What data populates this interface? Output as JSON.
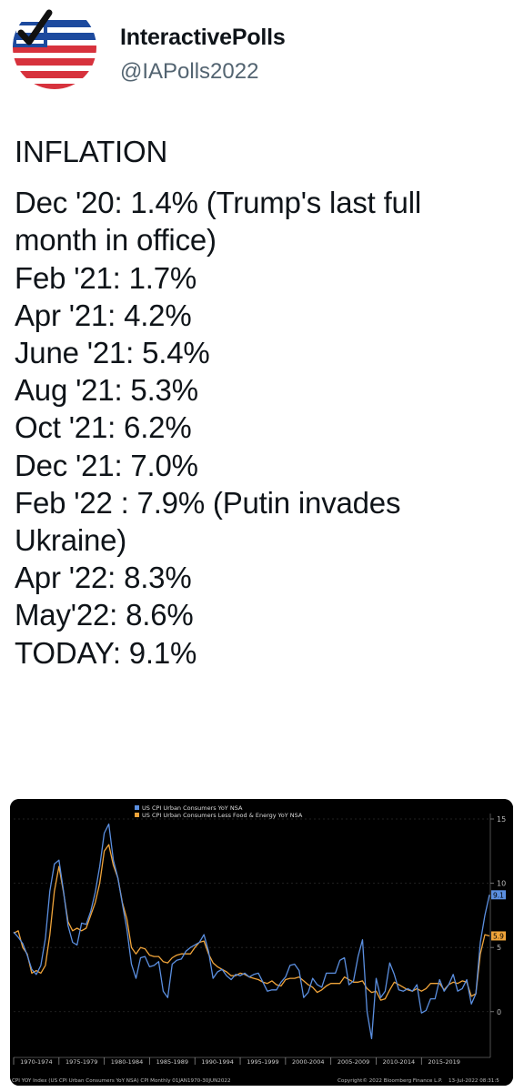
{
  "account": {
    "name": "InteractivePolls",
    "handle": "@IAPolls2022",
    "avatar_icon": "check-flag-icon"
  },
  "tweet": {
    "heading": "INFLATION",
    "lines": [
      "Dec '20: 1.4% (Trump's last full",
      "month in office)",
      "Feb '21: 1.7%",
      "Apr '21: 4.2%",
      "June '21: 5.4%",
      "Aug '21: 5.3%",
      "Oct '21: 6.2%",
      "Dec '21: 7.0%",
      "Feb '22 : 7.9% (Putin invades",
      "Ukraine)",
      "Apr '22: 8.3%",
      "May'22: 8.6%",
      "TODAY: 9.1%"
    ]
  },
  "colors": {
    "background": "#ffffff",
    "text": "#0f1419",
    "muted": "#536471",
    "chart_bg": "#000000",
    "series_headline": "#5b8fe0",
    "series_core": "#f0a43a"
  },
  "chart_data": {
    "type": "line",
    "title": "",
    "xlabel": "",
    "ylabel": "",
    "xlim": [
      1970,
      2022.6
    ],
    "ylim": [
      -2,
      15
    ],
    "y_ticks": [
      0,
      5,
      10,
      15
    ],
    "x_tick_labels": [
      "1970-1974",
      "1975-1979",
      "1980-1984",
      "1985-1989",
      "1990-1994",
      "1995-1999",
      "2000-2004",
      "2005-2009",
      "2010-2014",
      "2015-2019"
    ],
    "legend": {
      "placement": "top-left",
      "entries": [
        "US CPI Urban Consumers YoY NSA",
        "US CPI Urban Consumers Less Food & Energy YoY NSA"
      ]
    },
    "last_value_labels": [
      "9.1",
      "5.9"
    ],
    "footer_left": "CPI YOY Index (US CPI Urban Consumers YoY NSA) CPI  Monthly 01JAN1970-30JUN2022",
    "footer_copyright": "Copyright© 2022 Bloomberg Finance L.P.",
    "footer_date": "13-Jul-2022 08:31:5",
    "series": [
      {
        "name": "US CPI Urban Consumers YoY NSA",
        "x": [
          1970,
          1970.5,
          1971,
          1971.5,
          1972,
          1972.5,
          1973,
          1973.5,
          1974,
          1974.5,
          1975,
          1975.5,
          1976,
          1976.5,
          1977,
          1977.5,
          1978,
          1978.5,
          1979,
          1979.5,
          1980,
          1980.5,
          1981,
          1981.5,
          1982,
          1982.5,
          1983,
          1983.5,
          1984,
          1984.5,
          1985,
          1985.5,
          1986,
          1986.5,
          1987,
          1987.5,
          1988,
          1988.5,
          1989,
          1989.5,
          1990,
          1990.5,
          1991,
          1991.5,
          1992,
          1992.5,
          1993,
          1993.5,
          1994,
          1994.5,
          1995,
          1995.5,
          1996,
          1996.5,
          1997,
          1997.5,
          1998,
          1998.5,
          1999,
          1999.5,
          2000,
          2000.5,
          2001,
          2001.5,
          2002,
          2002.5,
          2003,
          2003.5,
          2004,
          2004.5,
          2005,
          2005.5,
          2006,
          2006.5,
          2007,
          2007.5,
          2008,
          2008.5,
          2009,
          2009.5,
          2010,
          2010.5,
          2011,
          2011.5,
          2012,
          2012.5,
          2013,
          2013.5,
          2014,
          2014.5,
          2015,
          2015.5,
          2016,
          2016.5,
          2017,
          2017.5,
          2018,
          2018.5,
          2019,
          2019.5,
          2020,
          2020.5,
          2021,
          2021.5,
          2022,
          2022.5
        ],
        "values": [
          6.2,
          5.8,
          5.3,
          4.4,
          3.3,
          2.9,
          3.6,
          5.7,
          9.4,
          11.5,
          11.8,
          9.4,
          6.7,
          5.4,
          5.2,
          6.9,
          6.8,
          7.8,
          9.3,
          11.3,
          13.9,
          14.6,
          11.8,
          10.4,
          8.4,
          6.4,
          3.7,
          2.6,
          4.2,
          4.3,
          3.5,
          3.6,
          3.9,
          1.6,
          1.1,
          3.7,
          4.0,
          4.1,
          4.7,
          5.0,
          5.2,
          5.4,
          6.0,
          4.7,
          2.6,
          3.1,
          3.3,
          2.8,
          2.5,
          2.9,
          2.8,
          3.0,
          2.7,
          2.9,
          3.0,
          2.3,
          1.6,
          1.7,
          1.7,
          2.3,
          2.7,
          3.6,
          3.7,
          3.2,
          1.1,
          1.5,
          2.6,
          2.1,
          1.9,
          3.0,
          3.0,
          3.0,
          4.0,
          4.2,
          2.1,
          2.4,
          4.3,
          5.6,
          0.0,
          -2.1,
          2.6,
          1.1,
          1.6,
          3.8,
          2.9,
          1.7,
          1.6,
          1.8,
          1.6,
          2.1,
          -0.1,
          0.1,
          1.0,
          1.0,
          2.5,
          1.6,
          2.1,
          2.9,
          1.6,
          1.8,
          2.5,
          0.6,
          1.4,
          5.4,
          7.5,
          9.1
        ]
      },
      {
        "name": "US CPI Urban Consumers Less Food & Energy YoY NSA",
        "x": [
          1970,
          1970.5,
          1971,
          1971.5,
          1972,
          1972.5,
          1973,
          1973.5,
          1974,
          1974.5,
          1975,
          1975.5,
          1976,
          1976.5,
          1977,
          1977.5,
          1978,
          1978.5,
          1979,
          1979.5,
          1980,
          1980.5,
          1981,
          1981.5,
          1982,
          1982.5,
          1983,
          1983.5,
          1984,
          1984.5,
          1985,
          1985.5,
          1986,
          1986.5,
          1987,
          1987.5,
          1988,
          1988.5,
          1989,
          1989.5,
          1990,
          1990.5,
          1991,
          1991.5,
          1992,
          1992.5,
          1993,
          1993.5,
          1994,
          1994.5,
          1995,
          1995.5,
          1996,
          1996.5,
          1997,
          1997.5,
          1998,
          1998.5,
          1999,
          1999.5,
          2000,
          2000.5,
          2001,
          2001.5,
          2002,
          2002.5,
          2003,
          2003.5,
          2004,
          2004.5,
          2005,
          2005.5,
          2006,
          2006.5,
          2007,
          2007.5,
          2008,
          2008.5,
          2009,
          2009.5,
          2010,
          2010.5,
          2011,
          2011.5,
          2012,
          2012.5,
          2013,
          2013.5,
          2014,
          2014.5,
          2015,
          2015.5,
          2016,
          2016.5,
          2017,
          2017.5,
          2018,
          2018.5,
          2019,
          2019.5,
          2020,
          2020.5,
          2021,
          2021.5,
          2022,
          2022.5
        ],
        "values": [
          6.1,
          6.3,
          5.0,
          4.5,
          3.0,
          3.2,
          3.0,
          3.6,
          6.0,
          9.4,
          11.3,
          9.3,
          7.0,
          6.3,
          6.5,
          6.3,
          6.5,
          7.5,
          8.5,
          10.0,
          12.5,
          13.0,
          11.4,
          10.4,
          8.5,
          7.2,
          5.0,
          4.5,
          5.0,
          4.9,
          4.4,
          4.3,
          4.3,
          3.9,
          3.8,
          4.2,
          4.4,
          4.5,
          4.5,
          4.5,
          5.0,
          5.4,
          5.5,
          4.5,
          3.8,
          3.5,
          3.3,
          3.1,
          2.8,
          2.8,
          3.0,
          2.9,
          2.7,
          2.6,
          2.5,
          2.3,
          2.2,
          2.4,
          2.1,
          2.0,
          2.5,
          2.6,
          2.6,
          2.7,
          2.4,
          2.1,
          1.9,
          1.5,
          1.7,
          2.0,
          2.2,
          2.2,
          2.2,
          2.7,
          2.5,
          2.3,
          2.3,
          2.4,
          1.8,
          1.5,
          1.6,
          0.9,
          1.0,
          1.7,
          2.3,
          2.1,
          1.9,
          1.7,
          1.6,
          1.8,
          1.6,
          1.8,
          2.2,
          2.2,
          2.2,
          1.7,
          2.1,
          2.3,
          2.2,
          2.4,
          2.3,
          1.2,
          1.4,
          4.5,
          6.0,
          5.9
        ]
      }
    ]
  }
}
